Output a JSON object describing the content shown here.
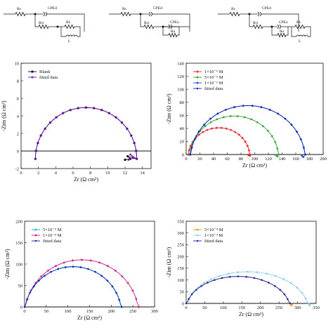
{
  "circuits": [
    {
      "labels": {
        "rs": "Rs",
        "cpe_dl": "CPEd",
        "rct": "Rct",
        "rl": "RL",
        "l": "L"
      }
    },
    {
      "labels": {
        "rs": "Rs",
        "cpe_dl": "CPEd",
        "rct": "Rct",
        "cpe_a": "CPEa",
        "ra": "Ra"
      }
    },
    {
      "labels": {
        "rs": "Rs",
        "cpe_dl": "CPEd",
        "rct": "Rct",
        "cpe_a": "CPEa",
        "ra": "Ra",
        "rl": "RL",
        "l": "L"
      }
    }
  ],
  "chart_data": [
    {
      "type": "scatter",
      "xlabel": "Zr (Ω cm²)",
      "ylabel": "-Zim (Ω cm²)",
      "xlim": [
        0,
        15
      ],
      "ylim": [
        -2,
        10
      ],
      "xticks": [
        "0",
        "2",
        "4",
        "6",
        "8",
        "10",
        "12",
        "14"
      ],
      "yticks": [
        "-2",
        "0",
        "2",
        "4",
        "6",
        "8",
        "10"
      ],
      "legend_position": "top-left",
      "series": [
        {
          "name": "Blank",
          "color": "#000000",
          "marker": "square",
          "center": 7.5,
          "radius": 5.85,
          "y_center": -0.9,
          "tail": [
            [
              12.3,
              -0.6
            ],
            [
              12.6,
              -0.9
            ],
            [
              12.0,
              -1.0
            ]
          ]
        },
        {
          "name": "fitted data",
          "color": "#6a0dad",
          "marker": "star",
          "center": 7.5,
          "radius": 5.85,
          "y_center": -0.9,
          "tail": [
            [
              12.6,
              -0.4
            ],
            [
              13.0,
              -0.8
            ],
            [
              12.4,
              -1.0
            ]
          ]
        }
      ]
    },
    {
      "type": "scatter",
      "xlabel": "Zr (Ω cm²)",
      "ylabel": "-Zim (Ω cm²)",
      "xlim": [
        0,
        200
      ],
      "ylim": [
        0,
        140
      ],
      "xticks": [
        "0",
        "20",
        "40",
        "60",
        "80",
        "100",
        "120",
        "140",
        "160",
        "180",
        "200"
      ],
      "yticks": [
        "0",
        "20",
        "40",
        "60",
        "80",
        "100",
        "120",
        "140"
      ],
      "legend_position": "top-left",
      "series": [
        {
          "name": "1×10⁻⁶ M",
          "color": "#e41a1c",
          "marker": "star",
          "center": 48,
          "radius": 45,
          "y_center": -4,
          "tail": [
            [
              93,
              -2
            ],
            [
              91,
              -1
            ]
          ]
        },
        {
          "name": "5×10⁻⁶ M",
          "color": "#2ca02c",
          "marker": "star",
          "center": 70,
          "radius": 65,
          "y_center": -6,
          "tail": [
            [
              133,
              -3
            ],
            [
              131,
              -1
            ]
          ]
        },
        {
          "name": "1×10⁻⁵ M",
          "color": "#1f3fd0",
          "marker": "star",
          "center": 90,
          "radius": 84,
          "y_center": -9,
          "tail": [
            [
              171,
              -4
            ],
            [
              169,
              -2
            ]
          ]
        },
        {
          "name": "fitted data",
          "color": "#0b1fb0",
          "marker": "dot",
          "center": 90,
          "radius": 84,
          "y_center": -9,
          "tail": []
        }
      ]
    },
    {
      "type": "scatter",
      "xlabel": "Zr (Ω cm²)",
      "ylabel": "-Zim (Ω cm²)",
      "xlim": [
        0,
        300
      ],
      "ylim": [
        0,
        200
      ],
      "xticks": [
        "0",
        "50",
        "100",
        "150",
        "200",
        "250",
        "300"
      ],
      "yticks": [
        "0",
        "50",
        "100",
        "150",
        "200"
      ],
      "legend_position": "top-left",
      "series": [
        {
          "name": "5×10⁻⁵ M",
          "color": "#00bcd4",
          "marker": "star",
          "center": 112,
          "radius": 112,
          "y_center": -18,
          "tail": []
        },
        {
          "name": "1×10⁻⁴ M",
          "color": "#c71585",
          "marker": "star",
          "center": 132,
          "radius": 132,
          "y_center": -22,
          "tail": []
        },
        {
          "name": "fitted data",
          "color": "#0b1fb0",
          "marker": "dot",
          "center": 112,
          "radius": 112,
          "y_center": -18,
          "tail": []
        }
      ]
    },
    {
      "type": "scatter",
      "xlabel": "Zr (Ω cm²)",
      "ylabel": "-Zim (Ω cm²)",
      "xlim": [
        0,
        350
      ],
      "ylim": [
        0,
        350
      ],
      "xticks": [
        "0",
        "50",
        "100",
        "150",
        "200",
        "250",
        "300",
        "350"
      ],
      "yticks": [
        "0",
        "50",
        "100",
        "150",
        "200",
        "250",
        "300",
        "350"
      ],
      "legend_position": "top-left",
      "series": [
        {
          "name": "5×10⁻⁴ M",
          "color": "#ff8c00",
          "marker": "star",
          "center": 140,
          "radius": 140,
          "y_center": -25,
          "tail": [
            [
              283,
              -8
            ],
            [
              285,
              -4
            ]
          ]
        },
        {
          "name": "1×10⁻³ M",
          "color": "#87ceeb",
          "marker": "star",
          "center": 165,
          "radius": 165,
          "y_center": -30,
          "tail": [
            [
              332,
              -9
            ],
            [
              333,
              -4
            ]
          ]
        },
        {
          "name": "fitted data",
          "color": "#0b1fb0",
          "marker": "dot",
          "center": 140,
          "radius": 140,
          "y_center": -25,
          "tail": []
        }
      ]
    }
  ]
}
